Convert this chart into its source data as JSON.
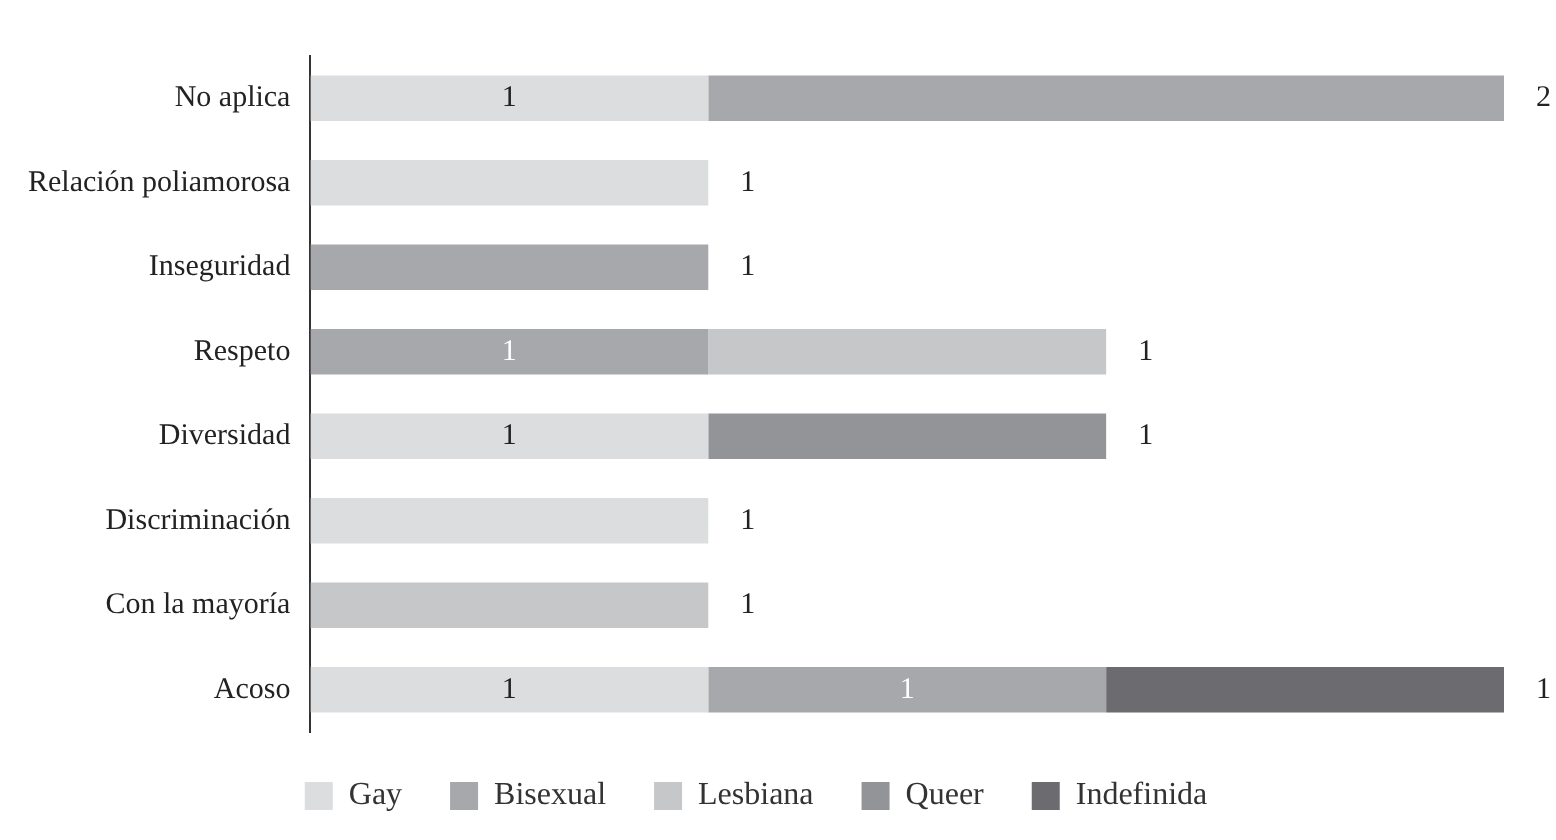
{
  "chart_data": {
    "type": "bar",
    "orientation": "horizontal",
    "stacked": true,
    "categories": [
      "No aplica",
      "Relación poliamorosa",
      "Inseguridad",
      "Respeto",
      "Diversidad",
      "Discriminación",
      "Con la mayoría",
      "Acoso"
    ],
    "series": [
      {
        "name": "Gay",
        "color": "#dcdddf",
        "values": [
          1,
          1,
          null,
          null,
          1,
          1,
          null,
          1
        ]
      },
      {
        "name": "Bisexual",
        "color": "#a7a8ac",
        "values": [
          2,
          null,
          1,
          1,
          null,
          null,
          null,
          1
        ]
      },
      {
        "name": "Lesbiana",
        "color": "#c6c7c9",
        "values": [
          null,
          null,
          null,
          1,
          null,
          null,
          1,
          null
        ]
      },
      {
        "name": "Queer",
        "color": "#939498",
        "values": [
          null,
          null,
          null,
          null,
          1,
          null,
          null,
          null
        ]
      },
      {
        "name": "Indefinida",
        "color": "#6b6b70",
        "values": [
          null,
          null,
          null,
          null,
          null,
          null,
          null,
          1
        ]
      }
    ],
    "xlim": [
      0,
      3
    ],
    "tick_labels": "y",
    "grid": false,
    "legend": "bottom",
    "data_labels": true
  }
}
